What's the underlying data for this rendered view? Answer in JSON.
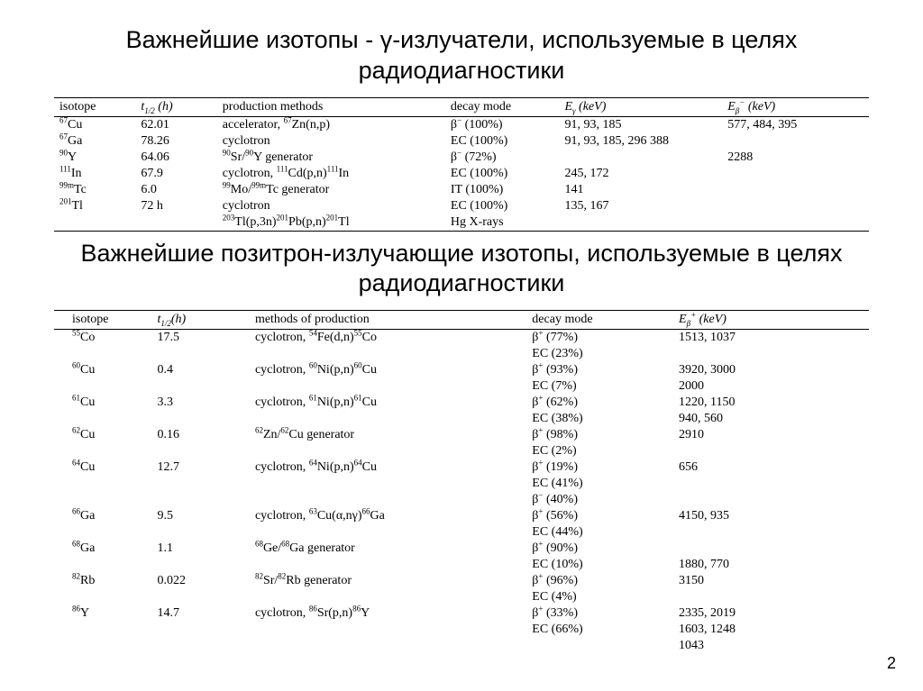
{
  "page_number": "2",
  "heading1": "Важнейшие изотопы - γ-излучатели, используемые в целях радиодиагностики",
  "heading2": "Важнейшие позитрон-излучающие изотопы, используемые в целях радиодиагностики",
  "table1": {
    "headers": {
      "isotope": "isotope",
      "half": "t<sub>1/2</sub> (h)",
      "prod": "production methods",
      "decay": "decay mode",
      "eg": "E<sub>γ</sub> (keV)",
      "eb": "E<sub>β</sub><sup>−</sup> (keV)"
    },
    "rows": [
      {
        "iso": "<sup>67</sup>Cu",
        "half": "62.01",
        "prod": "accelerator, <sup>67</sup>Zn(n,p)",
        "decay": "β<sup>−</sup> (100%)",
        "eg": "91, 93, 185",
        "eb": "577, 484, 395"
      },
      {
        "iso": "<sup>67</sup>Ga",
        "half": "78.26",
        "prod": "cyclotron",
        "decay": "EC (100%)",
        "eg": "91, 93, 185, 296 388",
        "eb": ""
      },
      {
        "iso": "<sup>90</sup>Y",
        "half": "64.06",
        "prod": "<sup>90</sup>Sr/<sup>90</sup>Y generator",
        "decay": "β<sup>−</sup> (72%)",
        "eg": "",
        "eb": "2288"
      },
      {
        "iso": "<sup>111</sup>In",
        "half": "67.9",
        "prod": "cyclotron, <sup>111</sup>Cd(p,n)<sup>111</sup>In",
        "decay": "EC (100%)",
        "eg": "245, 172",
        "eb": ""
      },
      {
        "iso": "<sup>99m</sup>Tc",
        "half": "6.0",
        "prod": "<sup>99</sup>Mo/<sup>99m</sup>Tc generator",
        "decay": "IT (100%)",
        "eg": "141",
        "eb": ""
      },
      {
        "iso": "<sup>201</sup>Tl",
        "half": "72 h",
        "prod": "cyclotron",
        "decay": "EC (100%)",
        "eg": "135, 167",
        "eb": ""
      },
      {
        "iso": "",
        "half": "",
        "prod": "<sup>203</sup>Tl(p,3n)<sup>201</sup>Pb(p,n)<sup>201</sup>Tl",
        "decay": "Hg X-rays",
        "eg": "",
        "eb": ""
      }
    ]
  },
  "table2": {
    "headers": {
      "isotope": "isotope",
      "half": "t<sub>1/2</sub>(h)",
      "prod": "methods of production",
      "decay": "decay mode",
      "eb": "E<sub>β</sub><sup>+</sup> (keV)"
    },
    "rows": [
      {
        "iso": "<sup>55</sup>Co",
        "half": "17.5",
        "prod": "cyclotron, <sup>54</sup>Fe(d,n)<sup>55</sup>Co",
        "decay": "β<sup>+</sup> (77%)",
        "eb": "1513, 1037"
      },
      {
        "iso": "",
        "half": "",
        "prod": "",
        "decay": "EC (23%)",
        "eb": ""
      },
      {
        "iso": "<sup>60</sup>Cu",
        "half": "0.4",
        "prod": "cyclotron, <sup>60</sup>Ni(p,n)<sup>60</sup>Cu",
        "decay": "β<sup>+</sup> (93%)",
        "eb": "3920, 3000"
      },
      {
        "iso": "",
        "half": "",
        "prod": "",
        "decay": "EC (7%)",
        "eb": "2000"
      },
      {
        "iso": "<sup>61</sup>Cu",
        "half": "3.3",
        "prod": "cyclotron, <sup>61</sup>Ni(p,n)<sup>61</sup>Cu",
        "decay": "β<sup>+</sup> (62%)",
        "eb": "1220, 1150"
      },
      {
        "iso": "",
        "half": "",
        "prod": "",
        "decay": "EC (38%)",
        "eb": "940, 560"
      },
      {
        "iso": "<sup>62</sup>Cu",
        "half": "0.16",
        "prod": "<sup>62</sup>Zn/<sup>62</sup>Cu generator",
        "decay": "β<sup>+</sup> (98%)",
        "eb": "2910"
      },
      {
        "iso": "",
        "half": "",
        "prod": "",
        "decay": "EC (2%)",
        "eb": ""
      },
      {
        "iso": "<sup>64</sup>Cu",
        "half": "12.7",
        "prod": "cyclotron, <sup>64</sup>Ni(p,n)<sup>64</sup>Cu",
        "decay": "β<sup>+</sup> (19%)",
        "eb": "656"
      },
      {
        "iso": "",
        "half": "",
        "prod": "",
        "decay": "EC (41%)",
        "eb": ""
      },
      {
        "iso": "",
        "half": "",
        "prod": "",
        "decay": "β<sup>−</sup> (40%)",
        "eb": ""
      },
      {
        "iso": "<sup>66</sup>Ga",
        "half": "9.5",
        "prod": "cyclotron, <sup>63</sup>Cu(α,nγ)<sup>66</sup>Ga",
        "decay": "β<sup>+</sup> (56%)",
        "eb": "4150, 935"
      },
      {
        "iso": "",
        "half": "",
        "prod": "",
        "decay": "EC (44%)",
        "eb": ""
      },
      {
        "iso": "<sup>68</sup>Ga",
        "half": "1.1",
        "prod": "<sup>68</sup>Ge/<sup>68</sup>Ga generator",
        "decay": "β<sup>+</sup> (90%)",
        "eb": ""
      },
      {
        "iso": "",
        "half": "",
        "prod": "",
        "decay": "EC (10%)",
        "eb": "1880, 770"
      },
      {
        "iso": "<sup>82</sup>Rb",
        "half": "0.022",
        "prod": "<sup>82</sup>Sr/<sup>82</sup>Rb generator",
        "decay": "β<sup>+</sup> (96%)",
        "eb": "3150"
      },
      {
        "iso": "",
        "half": "",
        "prod": "",
        "decay": "EC (4%)",
        "eb": ""
      },
      {
        "iso": "<sup>86</sup>Y",
        "half": "14.7",
        "prod": "cyclotron, <sup>86</sup>Sr(p,n)<sup>86</sup>Y",
        "decay": "β<sup>+</sup> (33%)",
        "eb": "2335, 2019"
      },
      {
        "iso": "",
        "half": "",
        "prod": "",
        "decay": "EC (66%)",
        "eb": "1603, 1248"
      },
      {
        "iso": "",
        "half": "",
        "prod": "",
        "decay": "",
        "eb": "1043"
      }
    ]
  }
}
